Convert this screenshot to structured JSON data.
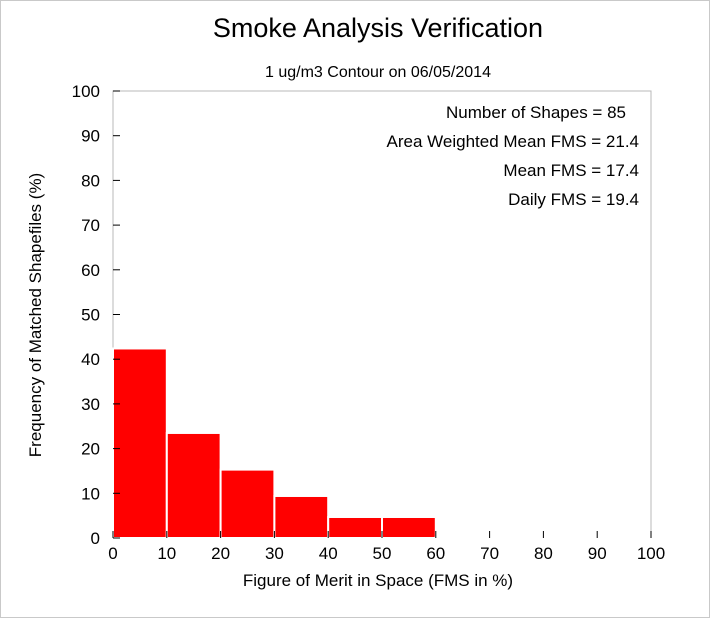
{
  "chart_data": {
    "type": "bar",
    "title": "Smoke Analysis Verification",
    "subtitle": "1 ug/m3 Contour on 06/05/2014",
    "xlabel": "Figure of Merit in Space (FMS in %)",
    "ylabel": "Frequency of Matched Shapefiles (%)",
    "xlim": [
      0,
      110
    ],
    "ylim": [
      0,
      100
    ],
    "xticks": [
      "0",
      "10",
      "20",
      "30",
      "40",
      "50",
      "60",
      "70",
      "80",
      "90",
      "100"
    ],
    "yticks": [
      "0",
      "10",
      "20",
      "30",
      "40",
      "50",
      "60",
      "70",
      "80",
      "90",
      "100"
    ],
    "bins": [
      [
        0,
        10
      ],
      [
        10,
        20
      ],
      [
        20,
        30
      ],
      [
        30,
        40
      ],
      [
        40,
        50
      ],
      [
        50,
        60
      ],
      [
        60,
        70
      ],
      [
        70,
        80
      ],
      [
        80,
        90
      ],
      [
        90,
        100
      ],
      [
        100,
        110
      ]
    ],
    "values": [
      42.4,
      23.5,
      15.3,
      9.4,
      4.7,
      4.7,
      0,
      0,
      0,
      0,
      0
    ],
    "bar_color": "#ff0000",
    "grid": false,
    "annotations": [
      "Number of Shapes = 85",
      "Area Weighted Mean FMS = 21.4",
      "Mean FMS = 17.4",
      "Daily FMS = 19.4"
    ],
    "annotation_position": "top-right"
  }
}
